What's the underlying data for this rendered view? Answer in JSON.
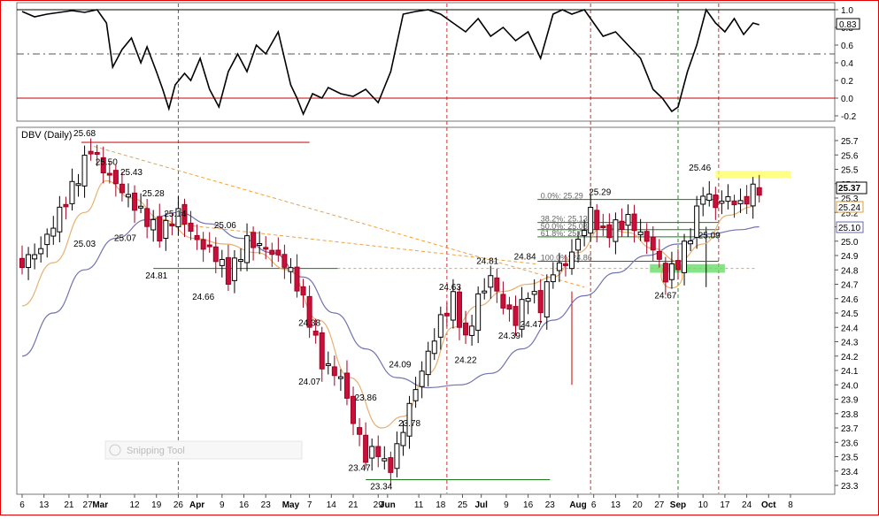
{
  "chart_data": {
    "type": "candlestick",
    "title": "DBV (Daily)",
    "current_price": "25.37",
    "ma_fast_value": "25.24",
    "ma_slow_value": "25.10",
    "indicator_current": "0.83",
    "price_ylim": [
      23.25,
      25.8
    ],
    "price_yticks": [
      "25.7",
      "25.6",
      "25.5",
      "25.4",
      "25.3",
      "25.2",
      "25.1",
      "25.0",
      "24.9",
      "24.8",
      "24.7",
      "24.6",
      "24.5",
      "24.4",
      "24.3",
      "24.2",
      "24.1",
      "24.0",
      "23.9",
      "23.8",
      "23.7",
      "23.6",
      "23.5",
      "23.4",
      "23.3"
    ],
    "indicator_ylim": [
      -0.25,
      1.05
    ],
    "indicator_yticks": [
      "1.0",
      "0.8",
      "0.6",
      "0.4",
      "0.2",
      "0.0",
      "-0.2"
    ],
    "x_ticks": [
      {
        "label": "6",
        "d": -30
      },
      {
        "label": "13",
        "d": -23
      },
      {
        "label": "21",
        "d": -15
      },
      {
        "label": "27",
        "d": -9
      },
      {
        "label": "Mar",
        "d": -5,
        "bold": true
      },
      {
        "label": "12",
        "d": 6
      },
      {
        "label": "19",
        "d": 13
      },
      {
        "label": "26",
        "d": 20
      },
      {
        "label": "Apr",
        "d": 26,
        "bold": true
      },
      {
        "label": "9",
        "d": 34
      },
      {
        "label": "16",
        "d": 41
      },
      {
        "label": "23",
        "d": 48
      },
      {
        "label": "May",
        "d": 56,
        "bold": true
      },
      {
        "label": "7",
        "d": 62
      },
      {
        "label": "14",
        "d": 69
      },
      {
        "label": "21",
        "d": 76
      },
      {
        "label": "29",
        "d": 84
      },
      {
        "label": "Jun",
        "d": 87,
        "bold": true
      },
      {
        "label": "11",
        "d": 97
      },
      {
        "label": "18",
        "d": 104
      },
      {
        "label": "25",
        "d": 111
      },
      {
        "label": "Jul",
        "d": 117,
        "bold": true
      },
      {
        "label": "9",
        "d": 125
      },
      {
        "label": "16",
        "d": 132
      },
      {
        "label": "23",
        "d": 139
      },
      {
        "label": "Aug",
        "d": 148,
        "bold": true
      },
      {
        "label": "6",
        "d": 153
      },
      {
        "label": "13",
        "d": 160
      },
      {
        "label": "20",
        "d": 167
      },
      {
        "label": "27",
        "d": 174
      },
      {
        "label": "Sep",
        "d": 180,
        "bold": true
      },
      {
        "label": "10",
        "d": 188
      },
      {
        "label": "17",
        "d": 195
      },
      {
        "label": "24",
        "d": 202
      },
      {
        "label": "Oct",
        "d": 209,
        "bold": true
      },
      {
        "label": "8",
        "d": 216
      }
    ],
    "annotations": [
      {
        "text": "25.68",
        "d": -10,
        "v": 25.75
      },
      {
        "text": "25.50",
        "d": -3,
        "v": 25.55
      },
      {
        "text": "25.43",
        "d": 5,
        "v": 25.48
      },
      {
        "text": "25.28",
        "d": 12,
        "v": 25.33
      },
      {
        "text": "25.14",
        "d": 19,
        "v": 25.19
      },
      {
        "text": "25.06",
        "d": 35,
        "v": 25.11
      },
      {
        "text": "25.03",
        "d": -10,
        "v": 24.98
      },
      {
        "text": "25.07",
        "d": 3,
        "v": 25.02
      },
      {
        "text": "24.81",
        "d": 13,
        "v": 24.76
      },
      {
        "text": "24.66",
        "d": 28,
        "v": 24.61
      },
      {
        "text": "24.38",
        "d": 62,
        "v": 24.43
      },
      {
        "text": "24.07",
        "d": 62,
        "v": 24.02
      },
      {
        "text": "23.86",
        "d": 80,
        "v": 23.91
      },
      {
        "text": "23.47",
        "d": 78,
        "v": 23.42
      },
      {
        "text": "23.34",
        "d": 85,
        "v": 23.29
      },
      {
        "text": "24.09",
        "d": 91,
        "v": 24.14
      },
      {
        "text": "23.78",
        "d": 94,
        "v": 23.73
      },
      {
        "text": "24.63",
        "d": 107,
        "v": 24.68
      },
      {
        "text": "24.22",
        "d": 112,
        "v": 24.17
      },
      {
        "text": "24.81",
        "d": 119,
        "v": 24.86
      },
      {
        "text": "24.39",
        "d": 126,
        "v": 24.34
      },
      {
        "text": "24.84",
        "d": 131,
        "v": 24.89
      },
      {
        "text": "24.47",
        "d": 133,
        "v": 24.42
      },
      {
        "text": "25.29",
        "d": 155,
        "v": 25.34
      },
      {
        "text": "24.67",
        "d": 176,
        "v": 24.62
      },
      {
        "text": "25.46",
        "d": 187,
        "v": 25.51
      },
      {
        "text": "25.09",
        "d": 190,
        "v": 25.04
      }
    ],
    "fib_levels": [
      {
        "text": "0.0%: 25.29",
        "v": 25.29
      },
      {
        "text": "38.2%: 25.13",
        "v": 25.13
      },
      {
        "text": "50.0%: 25.08",
        "v": 25.08
      },
      {
        "text": "61.8%: 25.03",
        "v": 25.03
      },
      {
        "text": "100.0%: 24.86",
        "v": 24.86
      }
    ],
    "watermark": "Snipping Tool"
  }
}
